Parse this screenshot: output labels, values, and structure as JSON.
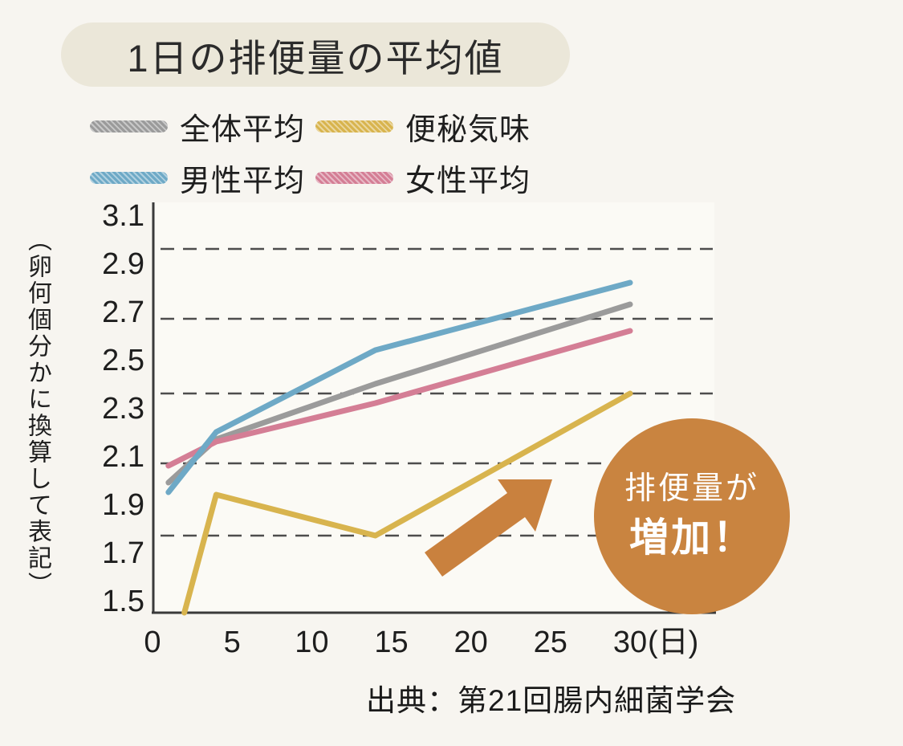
{
  "title": "1日の排便量の平均値",
  "legend": [
    {
      "key": "overall",
      "label": "全体平均",
      "color": "#9b9b9b"
    },
    {
      "key": "constipated",
      "label": "便秘気味",
      "color": "#d8b44e"
    },
    {
      "key": "male",
      "label": "男性平均",
      "color": "#6ea9c6"
    },
    {
      "key": "female",
      "label": "女性平均",
      "color": "#d4descr"
    }
  ],
  "chart_data": {
    "type": "line",
    "title": "1日の排便量の平均値",
    "ylabel": "（卵何個分かに換算して表記）",
    "x_unit": "(日)",
    "x_ticks": [
      0,
      5,
      10,
      15,
      20,
      25,
      30
    ],
    "y_ticks": [
      3.1,
      2.9,
      2.7,
      2.5,
      2.3,
      2.1,
      1.9,
      1.7,
      1.5
    ],
    "xlim": [
      0,
      35
    ],
    "ylim": [
      1.5,
      3.1
    ],
    "grid": "dashed horizontal",
    "gridline_values": [
      2.96,
      2.67,
      2.36,
      2.07,
      1.77
    ],
    "legend_position": "top-left",
    "series": [
      {
        "key": "overall",
        "name": "全体平均",
        "color": "#9b9b9b",
        "points": [
          [
            1,
            1.99
          ],
          [
            4,
            2.17
          ],
          [
            14,
            2.4
          ],
          [
            30,
            2.73
          ]
        ]
      },
      {
        "key": "female",
        "name": "女性平均",
        "color": "#d47e95",
        "points": [
          [
            1,
            2.06
          ],
          [
            4,
            2.16
          ],
          [
            14,
            2.32
          ],
          [
            30,
            2.62
          ]
        ]
      },
      {
        "key": "male",
        "name": "男性平均",
        "color": "#6ea9c6",
        "points": [
          [
            1,
            1.95
          ],
          [
            4,
            2.2
          ],
          [
            14,
            2.54
          ],
          [
            30,
            2.82
          ]
        ]
      },
      {
        "key": "constipated",
        "name": "便秘気味",
        "color": "#d8b44e",
        "points": [
          [
            2,
            1.45
          ],
          [
            4,
            1.94
          ],
          [
            14,
            1.77
          ],
          [
            30,
            2.36
          ]
        ]
      }
    ]
  },
  "annotation": {
    "line1": "排便量が",
    "line2": "増加！",
    "circle_color": "#c98440",
    "arrow_color": "#c9813e"
  },
  "source": "出典：第21回腸内細菌学会"
}
